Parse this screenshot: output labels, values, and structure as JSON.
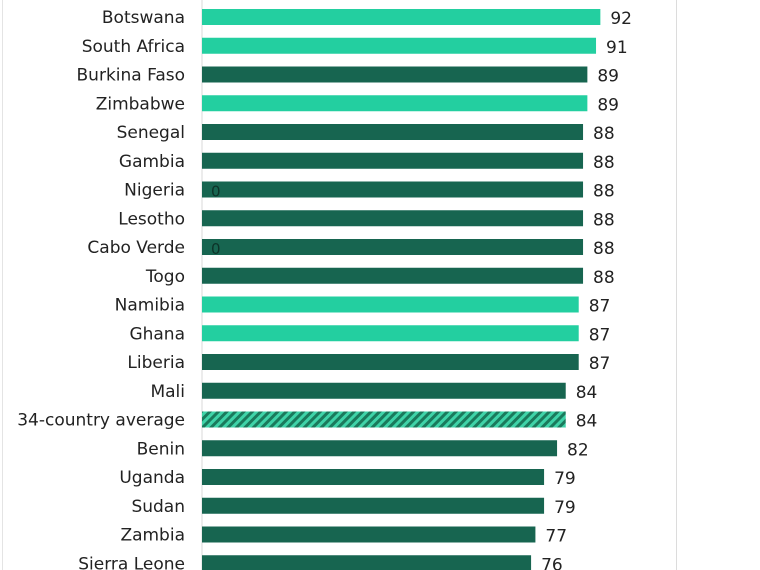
{
  "chart_data": {
    "type": "bar",
    "orientation": "horizontal",
    "title": "",
    "xlabel": "",
    "ylabel": "",
    "xlim": [
      0,
      100
    ],
    "grid": false,
    "colors": {
      "highlight": "#23cfa0",
      "default": "#176550",
      "average_hatch": "#1a8f6c",
      "average_hatch_light": "#3fd3a8"
    },
    "categories": [
      "Botswana",
      "South Africa",
      "Burkina Faso",
      "Zimbabwe",
      "Senegal",
      "Gambia",
      "Nigeria",
      "Lesotho",
      "Cabo Verde",
      "Togo",
      "Namibia",
      "Ghana",
      "Liberia",
      "Mali",
      "34-country average",
      "Benin",
      "Uganda",
      "Sudan",
      "Zambia",
      "Sierra Leone"
    ],
    "values": [
      92,
      91,
      89,
      89,
      88,
      88,
      88,
      88,
      88,
      88,
      87,
      87,
      87,
      84,
      84,
      82,
      79,
      79,
      77,
      76
    ],
    "styles": [
      "highlight",
      "highlight",
      "default",
      "highlight",
      "default",
      "default",
      "default",
      "default",
      "default",
      "default",
      "highlight",
      "highlight",
      "default",
      "default",
      "average",
      "default",
      "default",
      "default",
      "default",
      "default"
    ],
    "inner_labels": {
      "Nigeria": "0",
      "Cabo Verde": "0"
    }
  }
}
